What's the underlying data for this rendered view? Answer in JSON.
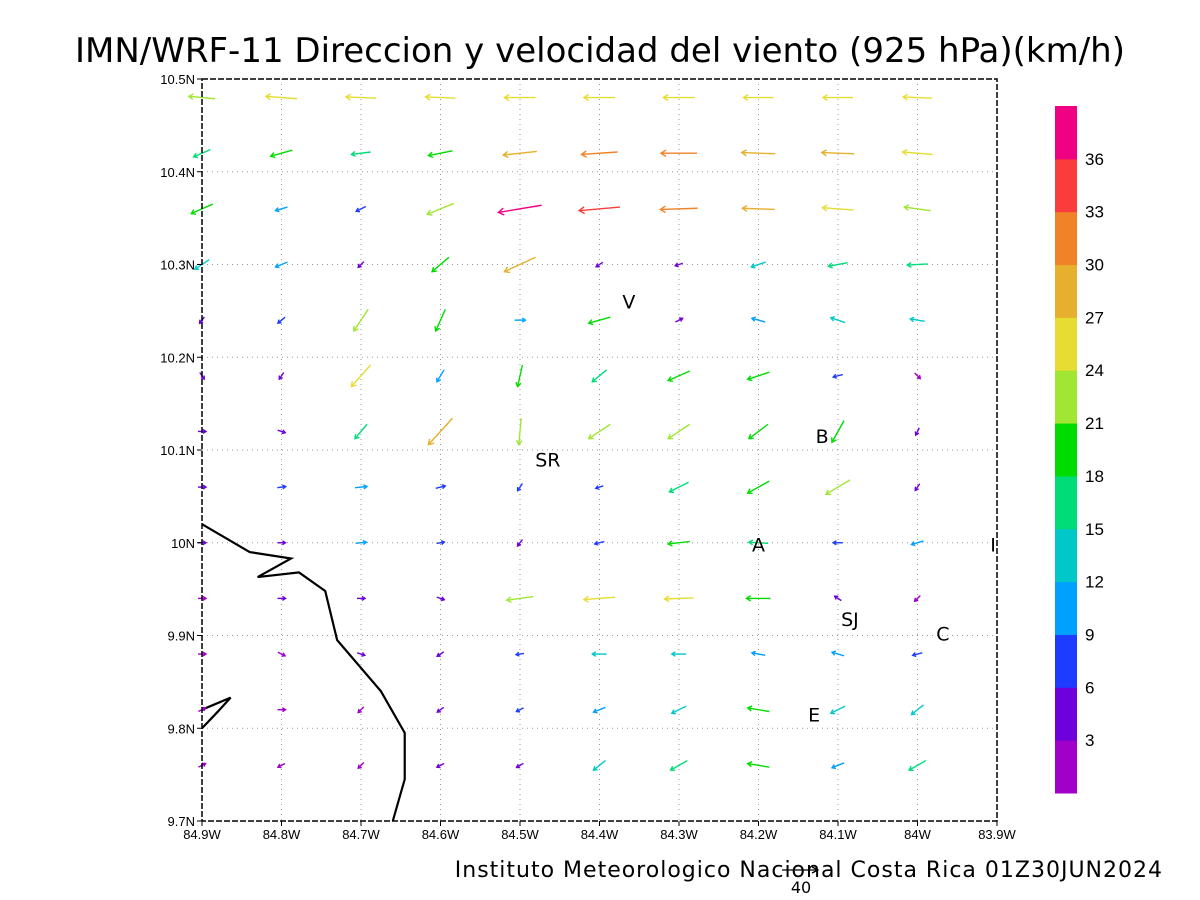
{
  "chart_data": {
    "type": "vector-field",
    "title": "IMN/WRF-11 Direccion y velocidad del viento (925 hPa)(km/h)",
    "footer": "Instituto Meteorologico Nacional Costa Rica 01Z30JUN2024",
    "reference_vector": {
      "value": 40,
      "label": "40"
    },
    "x_axis": {
      "range": [
        -84.9,
        -83.9
      ],
      "ticks": [
        {
          "value": -84.9,
          "label": "84.9W"
        },
        {
          "value": -84.8,
          "label": "84.8W"
        },
        {
          "value": -84.7,
          "label": "84.7W"
        },
        {
          "value": -84.6,
          "label": "84.6W"
        },
        {
          "value": -84.5,
          "label": "84.5W"
        },
        {
          "value": -84.4,
          "label": "84.4W"
        },
        {
          "value": -84.3,
          "label": "84.3W"
        },
        {
          "value": -84.2,
          "label": "84.2W"
        },
        {
          "value": -84.1,
          "label": "84.1W"
        },
        {
          "value": -84.0,
          "label": "84W"
        },
        {
          "value": -83.9,
          "label": "83.9W"
        }
      ]
    },
    "y_axis": {
      "range": [
        9.7,
        10.5
      ],
      "ticks": [
        {
          "value": 9.7,
          "label": "9.7N"
        },
        {
          "value": 9.8,
          "label": "9.8N"
        },
        {
          "value": 9.9,
          "label": "9.9N"
        },
        {
          "value": 10.0,
          "label": "10N"
        },
        {
          "value": 10.1,
          "label": "10.1N"
        },
        {
          "value": 10.2,
          "label": "10.2N"
        },
        {
          "value": 10.3,
          "label": "10.3N"
        },
        {
          "value": 10.4,
          "label": "10.4N"
        },
        {
          "value": 10.5,
          "label": "10.5N"
        }
      ]
    },
    "grid": true,
    "colorbar": {
      "placement": "right",
      "levels": [
        {
          "min": 0,
          "max": 3,
          "color": "#a000c8"
        },
        {
          "min": 3,
          "max": 6,
          "color": "#6e00dc"
        },
        {
          "min": 6,
          "max": 9,
          "color": "#1e3cff"
        },
        {
          "min": 9,
          "max": 12,
          "color": "#00a0ff"
        },
        {
          "min": 12,
          "max": 15,
          "color": "#00c8c8"
        },
        {
          "min": 15,
          "max": 18,
          "color": "#00dc78"
        },
        {
          "min": 18,
          "max": 21,
          "color": "#00dc00"
        },
        {
          "min": 21,
          "max": 24,
          "color": "#a0e632"
        },
        {
          "min": 24,
          "max": 27,
          "color": "#e6dc32"
        },
        {
          "min": 27,
          "max": 30,
          "color": "#e6af2d"
        },
        {
          "min": 30,
          "max": 33,
          "color": "#f08228"
        },
        {
          "min": 33,
          "max": 36,
          "color": "#fa3c3c"
        },
        {
          "min": 36,
          "max": 40,
          "color": "#f00082"
        }
      ],
      "tick_labels": [
        "3",
        "6",
        "9",
        "12",
        "15",
        "18",
        "21",
        "24",
        "27",
        "30",
        "33",
        "36"
      ]
    },
    "stations": [
      {
        "label": "V",
        "lon": -84.363,
        "lat": 10.26
      },
      {
        "label": "B",
        "lon": -84.12,
        "lat": 10.115
      },
      {
        "label": "SR",
        "lon": -84.465,
        "lat": 10.09
      },
      {
        "label": "A",
        "lon": -84.2,
        "lat": 9.998
      },
      {
        "label": "I",
        "lon": -83.905,
        "lat": 9.998
      },
      {
        "label": "SJ",
        "lon": -84.085,
        "lat": 9.918
      },
      {
        "label": "C",
        "lon": -83.968,
        "lat": 9.902
      },
      {
        "label": "E",
        "lon": -84.13,
        "lat": 9.815
      }
    ],
    "coastline": [
      [
        -84.9,
        10.02
      ],
      [
        -84.84,
        9.99
      ],
      [
        -84.788,
        9.983
      ],
      [
        -84.83,
        9.963
      ],
      [
        -84.778,
        9.968
      ],
      [
        -84.745,
        9.948
      ],
      [
        -84.73,
        9.895
      ],
      [
        -84.675,
        9.84
      ],
      [
        -84.645,
        9.795
      ],
      [
        -84.645,
        9.745
      ],
      [
        -84.66,
        9.7
      ]
    ],
    "coastline2": [
      [
        -84.9,
        9.8
      ],
      [
        -84.88,
        9.818
      ],
      [
        -84.864,
        9.833
      ],
      [
        -84.9,
        9.82
      ]
    ],
    "vectors": [
      {
        "lon": -84.9,
        "lat": 10.48,
        "u": -22,
        "v": 2
      },
      {
        "lon": -84.8,
        "lat": 10.48,
        "u": -26,
        "v": 2
      },
      {
        "lon": -84.7,
        "lat": 10.48,
        "u": -25,
        "v": 1
      },
      {
        "lon": -84.6,
        "lat": 10.48,
        "u": -25,
        "v": 1
      },
      {
        "lon": -84.5,
        "lat": 10.48,
        "u": -26,
        "v": 0
      },
      {
        "lon": -84.4,
        "lat": 10.48,
        "u": -26,
        "v": 0
      },
      {
        "lon": -84.3,
        "lat": 10.48,
        "u": -26,
        "v": 0
      },
      {
        "lon": -84.2,
        "lat": 10.48,
        "u": -25,
        "v": 0
      },
      {
        "lon": -84.1,
        "lat": 10.48,
        "u": -25,
        "v": 0
      },
      {
        "lon": -84.0,
        "lat": 10.48,
        "u": -24,
        "v": 1
      },
      {
        "lon": -84.9,
        "lat": 10.42,
        "u": -14,
        "v": -6
      },
      {
        "lon": -84.8,
        "lat": 10.42,
        "u": -18,
        "v": -5
      },
      {
        "lon": -84.7,
        "lat": 10.42,
        "u": -16,
        "v": -2
      },
      {
        "lon": -84.6,
        "lat": 10.42,
        "u": -20,
        "v": -4
      },
      {
        "lon": -84.5,
        "lat": 10.42,
        "u": -28,
        "v": -3
      },
      {
        "lon": -84.4,
        "lat": 10.42,
        "u": -30,
        "v": -2
      },
      {
        "lon": -84.3,
        "lat": 10.42,
        "u": -30,
        "v": 0
      },
      {
        "lon": -84.2,
        "lat": 10.42,
        "u": -28,
        "v": 1
      },
      {
        "lon": -84.1,
        "lat": 10.42,
        "u": -27,
        "v": 1
      },
      {
        "lon": -84.0,
        "lat": 10.42,
        "u": -25,
        "v": 2
      },
      {
        "lon": -84.9,
        "lat": 10.36,
        "u": -18,
        "v": -8
      },
      {
        "lon": -84.8,
        "lat": 10.36,
        "u": -10,
        "v": -3
      },
      {
        "lon": -84.7,
        "lat": 10.36,
        "u": -8,
        "v": -4
      },
      {
        "lon": -84.6,
        "lat": 10.36,
        "u": -22,
        "v": -9
      },
      {
        "lon": -84.5,
        "lat": 10.36,
        "u": -36,
        "v": -6
      },
      {
        "lon": -84.4,
        "lat": 10.36,
        "u": -34,
        "v": -3
      },
      {
        "lon": -84.3,
        "lat": 10.36,
        "u": -31,
        "v": -1
      },
      {
        "lon": -84.2,
        "lat": 10.36,
        "u": -27,
        "v": 1
      },
      {
        "lon": -84.1,
        "lat": 10.36,
        "u": -26,
        "v": 2
      },
      {
        "lon": -84.0,
        "lat": 10.36,
        "u": -22,
        "v": 3
      },
      {
        "lon": -84.9,
        "lat": 10.3,
        "u": -12,
        "v": -8
      },
      {
        "lon": -84.8,
        "lat": 10.3,
        "u": -10,
        "v": -4
      },
      {
        "lon": -84.7,
        "lat": 10.3,
        "u": -4,
        "v": -4
      },
      {
        "lon": -84.6,
        "lat": 10.3,
        "u": -14,
        "v": -12
      },
      {
        "lon": -84.5,
        "lat": 10.3,
        "u": -26,
        "v": -12
      },
      {
        "lon": -84.4,
        "lat": 10.3,
        "u": -3,
        "v": -2
      },
      {
        "lon": -84.3,
        "lat": 10.3,
        "u": -3,
        "v": -1
      },
      {
        "lon": -84.2,
        "lat": 10.3,
        "u": -12,
        "v": -4
      },
      {
        "lon": -84.1,
        "lat": 10.3,
        "u": -16,
        "v": -3
      },
      {
        "lon": -84.0,
        "lat": 10.3,
        "u": -17,
        "v": -1
      },
      {
        "lon": -84.9,
        "lat": 10.24,
        "u": -3,
        "v": -4
      },
      {
        "lon": -84.8,
        "lat": 10.24,
        "u": -6,
        "v": -5
      },
      {
        "lon": -84.7,
        "lat": 10.24,
        "u": -12,
        "v": -18
      },
      {
        "lon": -84.6,
        "lat": 10.24,
        "u": -8,
        "v": -18
      },
      {
        "lon": -84.5,
        "lat": 10.24,
        "u": 9,
        "v": 0
      },
      {
        "lon": -84.4,
        "lat": 10.24,
        "u": -18,
        "v": -5
      },
      {
        "lon": -84.3,
        "lat": 10.24,
        "u": 4,
        "v": 2
      },
      {
        "lon": -84.2,
        "lat": 10.24,
        "u": -11,
        "v": 3
      },
      {
        "lon": -84.1,
        "lat": 10.24,
        "u": -12,
        "v": 4
      },
      {
        "lon": -84.0,
        "lat": 10.24,
        "u": -12,
        "v": 2
      },
      {
        "lon": -84.9,
        "lat": 10.18,
        "u": 2,
        "v": -3
      },
      {
        "lon": -84.8,
        "lat": 10.18,
        "u": -2,
        "v": -3
      },
      {
        "lon": -84.7,
        "lat": 10.18,
        "u": -16,
        "v": -18
      },
      {
        "lon": -84.6,
        "lat": 10.18,
        "u": -6,
        "v": -10
      },
      {
        "lon": -84.5,
        "lat": 10.18,
        "u": -4,
        "v": -18
      },
      {
        "lon": -84.4,
        "lat": 10.18,
        "u": -12,
        "v": -10
      },
      {
        "lon": -84.3,
        "lat": 10.18,
        "u": -18,
        "v": -8
      },
      {
        "lon": -84.2,
        "lat": 10.18,
        "u": -18,
        "v": -6
      },
      {
        "lon": -84.1,
        "lat": 10.18,
        "u": -8,
        "v": -2
      },
      {
        "lon": -84.0,
        "lat": 10.18,
        "u": 2,
        "v": -2
      },
      {
        "lon": -84.9,
        "lat": 10.12,
        "u": 3,
        "v": 0
      },
      {
        "lon": -84.8,
        "lat": 10.12,
        "u": 3,
        "v": -1
      },
      {
        "lon": -84.7,
        "lat": 10.12,
        "u": -10,
        "v": -12
      },
      {
        "lon": -84.6,
        "lat": 10.12,
        "u": -20,
        "v": -22
      },
      {
        "lon": -84.5,
        "lat": 10.12,
        "u": -2,
        "v": -22
      },
      {
        "lon": -84.4,
        "lat": 10.12,
        "u": -18,
        "v": -12
      },
      {
        "lon": -84.3,
        "lat": 10.12,
        "u": -18,
        "v": -12
      },
      {
        "lon": -84.2,
        "lat": 10.12,
        "u": -16,
        "v": -12
      },
      {
        "lon": -84.1,
        "lat": 10.12,
        "u": -10,
        "v": -18
      },
      {
        "lon": -84.0,
        "lat": 10.12,
        "u": -2,
        "v": -4
      },
      {
        "lon": -84.9,
        "lat": 10.06,
        "u": 4,
        "v": 0
      },
      {
        "lon": -84.8,
        "lat": 10.06,
        "u": 7,
        "v": 1
      },
      {
        "lon": -84.7,
        "lat": 10.06,
        "u": 10,
        "v": 1
      },
      {
        "lon": -84.6,
        "lat": 10.06,
        "u": 8,
        "v": 2
      },
      {
        "lon": -84.5,
        "lat": 10.06,
        "u": -4,
        "v": -6
      },
      {
        "lon": -84.4,
        "lat": 10.06,
        "u": -6,
        "v": -2
      },
      {
        "lon": -84.3,
        "lat": 10.06,
        "u": -16,
        "v": -8
      },
      {
        "lon": -84.2,
        "lat": 10.06,
        "u": -18,
        "v": -10
      },
      {
        "lon": -84.1,
        "lat": 10.06,
        "u": -20,
        "v": -12
      },
      {
        "lon": -84.0,
        "lat": 10.06,
        "u": -2,
        "v": -3
      },
      {
        "lon": -84.9,
        "lat": 10.0,
        "u": 3,
        "v": 0
      },
      {
        "lon": -84.8,
        "lat": 10.0,
        "u": 5,
        "v": 0
      },
      {
        "lon": -84.7,
        "lat": 10.0,
        "u": 9,
        "v": 1
      },
      {
        "lon": -84.6,
        "lat": 10.0,
        "u": 6,
        "v": 1
      },
      {
        "lon": -84.5,
        "lat": 10.0,
        "u": -3,
        "v": -4
      },
      {
        "lon": -84.4,
        "lat": 10.0,
        "u": -8,
        "v": -2
      },
      {
        "lon": -84.3,
        "lat": 10.0,
        "u": -18,
        "v": -2
      },
      {
        "lon": -84.2,
        "lat": 10.0,
        "u": -16,
        "v": 1
      },
      {
        "lon": -84.1,
        "lat": 10.0,
        "u": -8,
        "v": 0
      },
      {
        "lon": -84.0,
        "lat": 10.0,
        "u": -10,
        "v": -3
      },
      {
        "lon": -84.9,
        "lat": 9.94,
        "u": 2,
        "v": 0
      },
      {
        "lon": -84.8,
        "lat": 9.94,
        "u": 3,
        "v": 0
      },
      {
        "lon": -84.7,
        "lat": 9.94,
        "u": 4,
        "v": 0
      },
      {
        "lon": -84.6,
        "lat": 9.94,
        "u": 3,
        "v": -1
      },
      {
        "lon": -84.5,
        "lat": 9.94,
        "u": -22,
        "v": -3
      },
      {
        "lon": -84.4,
        "lat": 9.94,
        "u": -26,
        "v": -2
      },
      {
        "lon": -84.3,
        "lat": 9.94,
        "u": -24,
        "v": -1
      },
      {
        "lon": -84.2,
        "lat": 9.94,
        "u": -20,
        "v": 0
      },
      {
        "lon": -84.1,
        "lat": 9.94,
        "u": -3,
        "v": 2
      },
      {
        "lon": -84.0,
        "lat": 9.94,
        "u": -2,
        "v": -2
      },
      {
        "lon": -84.9,
        "lat": 9.88,
        "u": 2,
        "v": 0
      },
      {
        "lon": -84.8,
        "lat": 9.88,
        "u": 2,
        "v": -1
      },
      {
        "lon": -84.7,
        "lat": 9.88,
        "u": 3,
        "v": -1
      },
      {
        "lon": -84.6,
        "lat": 9.88,
        "u": -3,
        "v": -2
      },
      {
        "lon": -84.5,
        "lat": 9.88,
        "u": -6,
        "v": -1
      },
      {
        "lon": -84.4,
        "lat": 9.88,
        "u": -12,
        "v": 0
      },
      {
        "lon": -84.3,
        "lat": 9.88,
        "u": -12,
        "v": 0
      },
      {
        "lon": -84.2,
        "lat": 9.88,
        "u": -11,
        "v": 2
      },
      {
        "lon": -84.1,
        "lat": 9.88,
        "u": -10,
        "v": 3
      },
      {
        "lon": -84.0,
        "lat": 9.88,
        "u": -8,
        "v": -2
      },
      {
        "lon": -84.9,
        "lat": 9.82,
        "u": 2,
        "v": 1
      },
      {
        "lon": -84.8,
        "lat": 9.82,
        "u": 2,
        "v": 0
      },
      {
        "lon": -84.7,
        "lat": 9.82,
        "u": -2,
        "v": -2
      },
      {
        "lon": -84.6,
        "lat": 9.82,
        "u": -4,
        "v": -3
      },
      {
        "lon": -84.5,
        "lat": 9.82,
        "u": -6,
        "v": -3
      },
      {
        "lon": -84.4,
        "lat": 9.82,
        "u": -10,
        "v": -4
      },
      {
        "lon": -84.3,
        "lat": 9.82,
        "u": -12,
        "v": -6
      },
      {
        "lon": -84.2,
        "lat": 9.82,
        "u": -18,
        "v": 3
      },
      {
        "lon": -84.1,
        "lat": 9.82,
        "u": -12,
        "v": -6
      },
      {
        "lon": -84.0,
        "lat": 9.82,
        "u": -10,
        "v": -8
      },
      {
        "lon": -84.9,
        "lat": 9.76,
        "u": 2,
        "v": 1
      },
      {
        "lon": -84.8,
        "lat": 9.76,
        "u": -2,
        "v": -1
      },
      {
        "lon": -84.7,
        "lat": 9.76,
        "u": -2,
        "v": -2
      },
      {
        "lon": -84.6,
        "lat": 9.76,
        "u": -4,
        "v": -2
      },
      {
        "lon": -84.5,
        "lat": 9.76,
        "u": -5,
        "v": -3
      },
      {
        "lon": -84.4,
        "lat": 9.76,
        "u": -10,
        "v": -8
      },
      {
        "lon": -84.3,
        "lat": 9.76,
        "u": -14,
        "v": -8
      },
      {
        "lon": -84.2,
        "lat": 9.76,
        "u": -18,
        "v": 3
      },
      {
        "lon": -84.1,
        "lat": 9.76,
        "u": -10,
        "v": -4
      },
      {
        "lon": -84.0,
        "lat": 9.76,
        "u": -14,
        "v": -8
      }
    ]
  }
}
